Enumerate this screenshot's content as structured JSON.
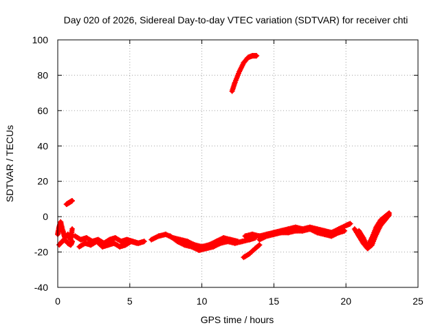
{
  "chart_data": {
    "type": "scatter",
    "title": "Day 020 of 2026, Sidereal Day-to-day VTEC variation (SDTVAR) for receiver chti",
    "xlabel": "GPS time / hours",
    "ylabel": "SDTVAR / TECUs",
    "xlim": [
      0,
      25
    ],
    "ylim": [
      -40,
      100
    ],
    "xticks": [
      0,
      5,
      10,
      15,
      20,
      25
    ],
    "yticks": [
      -40,
      -20,
      0,
      20,
      40,
      60,
      80,
      100
    ],
    "grid": true,
    "series": [
      {
        "name": "SDTVAR",
        "color": "#ff0000",
        "segments": [
          [
            [
              0.0,
              -10
            ],
            [
              0.1,
              -6
            ],
            [
              0.2,
              -3
            ],
            [
              0.35,
              -8
            ],
            [
              0.5,
              -12
            ],
            [
              0.7,
              -10
            ],
            [
              0.9,
              -13
            ],
            [
              1.0,
              -7
            ]
          ],
          [
            [
              0.1,
              -16
            ],
            [
              0.3,
              -14
            ],
            [
              0.5,
              -13
            ],
            [
              0.7,
              -15
            ],
            [
              0.9,
              -16
            ],
            [
              1.0,
              -14
            ]
          ],
          [
            [
              0.6,
              7
            ],
            [
              0.8,
              8
            ],
            [
              1.0,
              9
            ]
          ],
          [
            [
              1.2,
              -11
            ],
            [
              1.6,
              -13
            ],
            [
              2.0,
              -12
            ],
            [
              2.4,
              -14
            ],
            [
              2.8,
              -13
            ],
            [
              3.2,
              -15
            ],
            [
              3.6,
              -13
            ],
            [
              4.0,
              -12
            ],
            [
              4.4,
              -14
            ],
            [
              4.8,
              -13
            ],
            [
              5.2,
              -14
            ],
            [
              5.6,
              -15
            ],
            [
              6.0,
              -14
            ]
          ],
          [
            [
              1.5,
              -17
            ],
            [
              1.9,
              -15
            ],
            [
              2.3,
              -16
            ],
            [
              2.7,
              -14
            ],
            [
              3.1,
              -17
            ],
            [
              3.5,
              -16
            ],
            [
              3.9,
              -15
            ],
            [
              4.3,
              -17
            ],
            [
              4.7,
              -16
            ],
            [
              5.1,
              -14
            ],
            [
              5.5,
              -15
            ]
          ],
          [
            [
              6.5,
              -13
            ],
            [
              7.0,
              -11
            ],
            [
              7.5,
              -10
            ],
            [
              8.0,
              -12
            ],
            [
              8.5,
              -13
            ],
            [
              9.0,
              -14
            ],
            [
              9.5,
              -16
            ],
            [
              10.0,
              -17
            ],
            [
              10.5,
              -16
            ],
            [
              11.0,
              -14
            ],
            [
              11.5,
              -12
            ],
            [
              12.0,
              -13
            ],
            [
              12.5,
              -14
            ]
          ],
          [
            [
              7.8,
              -11
            ],
            [
              8.3,
              -14
            ],
            [
              8.8,
              -16
            ],
            [
              9.3,
              -17
            ],
            [
              9.8,
              -19
            ],
            [
              10.3,
              -18
            ],
            [
              10.8,
              -17
            ],
            [
              11.3,
              -15
            ],
            [
              11.8,
              -14
            ],
            [
              12.3,
              -15
            ],
            [
              12.8,
              -14
            ],
            [
              13.3,
              -13
            ],
            [
              13.7,
              -12
            ]
          ],
          [
            [
              12.1,
              71
            ],
            [
              12.3,
              76
            ],
            [
              12.6,
              82
            ],
            [
              12.9,
              87
            ],
            [
              13.2,
              90
            ],
            [
              13.5,
              91
            ],
            [
              13.8,
              91
            ]
          ],
          [
            [
              12.9,
              -23
            ],
            [
              13.3,
              -21
            ],
            [
              13.7,
              -18
            ],
            [
              14.0,
              -16
            ]
          ],
          [
            [
              13.0,
              -11
            ],
            [
              13.5,
              -10
            ],
            [
              14.0,
              -11
            ],
            [
              14.5,
              -10
            ],
            [
              15.0,
              -9
            ],
            [
              15.5,
              -8
            ],
            [
              16.0,
              -7
            ],
            [
              16.5,
              -6
            ],
            [
              17.0,
              -7
            ],
            [
              17.5,
              -6
            ],
            [
              18.0,
              -7
            ],
            [
              18.5,
              -8
            ],
            [
              19.0,
              -9
            ],
            [
              19.5,
              -7
            ],
            [
              20.0,
              -5
            ],
            [
              20.3,
              -4
            ]
          ],
          [
            [
              14.0,
              -13
            ],
            [
              14.5,
              -11
            ],
            [
              15.0,
              -10
            ],
            [
              15.5,
              -9
            ],
            [
              16.0,
              -9
            ],
            [
              16.5,
              -8
            ],
            [
              17.0,
              -8
            ],
            [
              17.5,
              -7
            ],
            [
              18.0,
              -9
            ],
            [
              18.5,
              -10
            ],
            [
              19.0,
              -11
            ],
            [
              19.5,
              -9
            ],
            [
              19.9,
              -8
            ]
          ],
          [
            [
              20.6,
              -7
            ],
            [
              20.9,
              -11
            ],
            [
              21.2,
              -15
            ],
            [
              21.5,
              -18
            ],
            [
              21.8,
              -16
            ],
            [
              22.1,
              -10
            ],
            [
              22.4,
              -5
            ],
            [
              22.7,
              -2
            ],
            [
              23.0,
              1
            ]
          ],
          [
            [
              20.9,
              -8
            ],
            [
              21.2,
              -12
            ],
            [
              21.5,
              -17
            ],
            [
              21.8,
              -12
            ],
            [
              22.1,
              -6
            ],
            [
              22.4,
              -2
            ],
            [
              22.7,
              0
            ],
            [
              23.0,
              2
            ]
          ]
        ]
      }
    ]
  }
}
